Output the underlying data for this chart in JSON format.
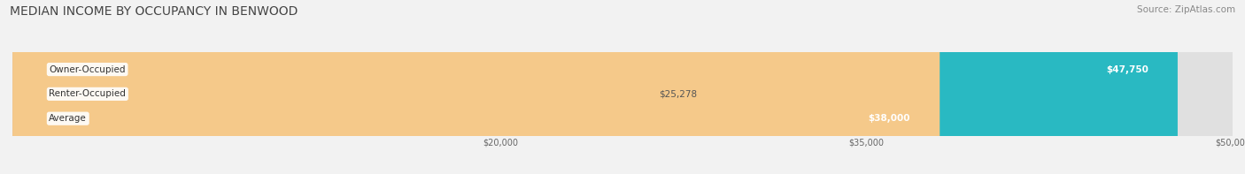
{
  "title": "MEDIAN INCOME BY OCCUPANCY IN BENWOOD",
  "source": "Source: ZipAtlas.com",
  "categories": [
    "Owner-Occupied",
    "Renter-Occupied",
    "Average"
  ],
  "values": [
    47750,
    25278,
    38000
  ],
  "bar_colors": [
    "#29b9c2",
    "#c4aad2",
    "#f5c98a"
  ],
  "label_colors": [
    "#333333",
    "#333333",
    "#333333"
  ],
  "value_label_colors": [
    "#ffffff",
    "#555555",
    "#ffffff"
  ],
  "value_labels": [
    "$47,750",
    "$25,278",
    "$38,000"
  ],
  "xlim": [
    0,
    50000
  ],
  "xticks": [
    20000,
    35000,
    50000
  ],
  "xtick_labels": [
    "$20,000",
    "$35,000",
    "$50,000"
  ],
  "background_color": "#f2f2f2",
  "bar_background_color": "#e0e0e0",
  "title_fontsize": 10,
  "source_fontsize": 7.5,
  "label_fontsize": 7.5,
  "value_fontsize": 7.5,
  "bar_height": 0.52
}
